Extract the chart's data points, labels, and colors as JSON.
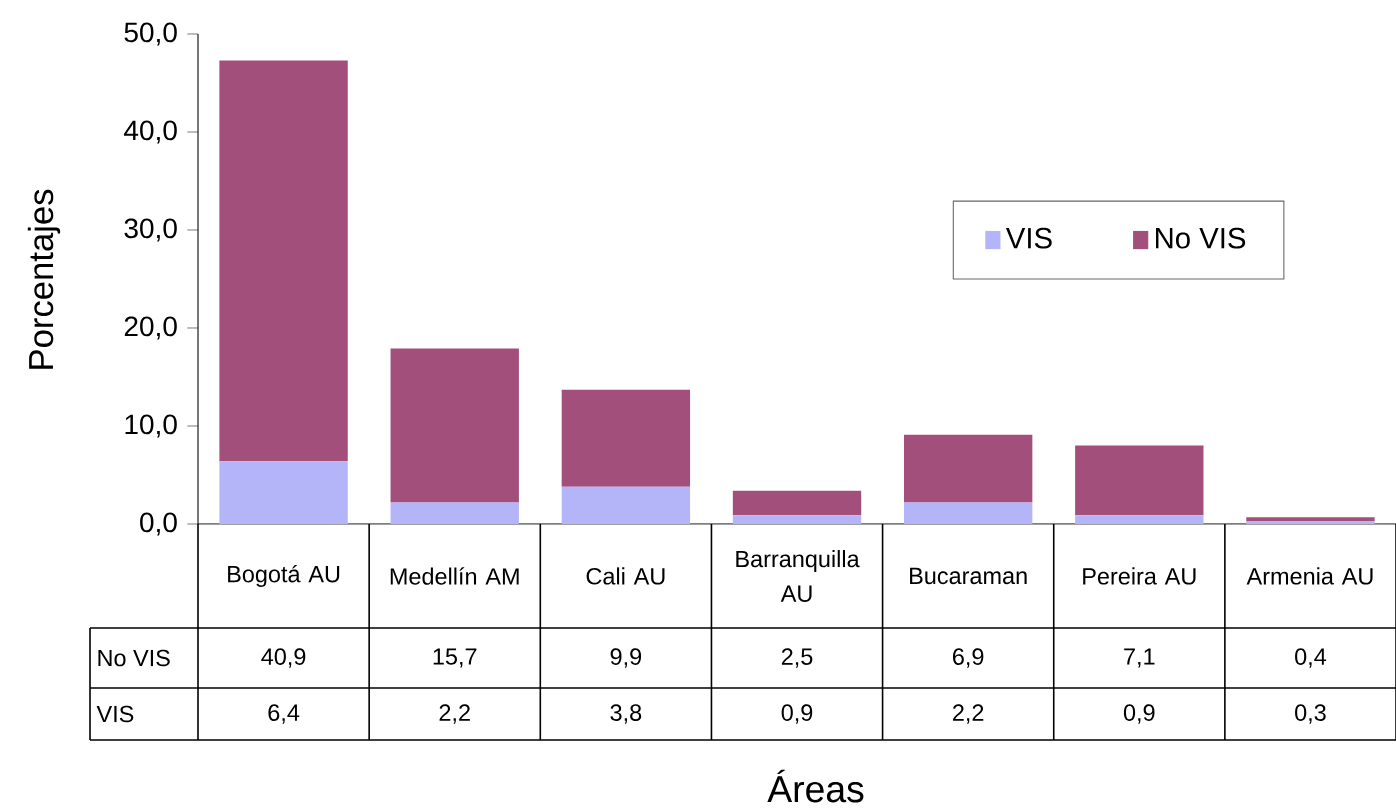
{
  "chart_data": {
    "type": "bar",
    "stacked": true,
    "ylabel": "Porcentajes",
    "xlabel": "Áreas",
    "categories": [
      "Bogotá AU",
      "Medellín AM",
      "Cali AU",
      "Barranquilla AU",
      "Bucaraman",
      "Pereira AU",
      "Armenia AU"
    ],
    "series": [
      {
        "name": "VIS",
        "color": "#b4b4f8",
        "values": [
          6.4,
          2.2,
          3.8,
          0.9,
          2.2,
          0.9,
          0.3
        ],
        "value_labels": [
          "6,4",
          "2,2",
          "3,8",
          "0,9",
          "2,2",
          "0,9",
          "0,3"
        ]
      },
      {
        "name": "No VIS",
        "color": "#a24f7c",
        "values": [
          40.9,
          15.7,
          9.9,
          2.5,
          6.9,
          7.1,
          0.4
        ],
        "value_labels": [
          "40,9",
          "15,7",
          "9,9",
          "2,5",
          "6,9",
          "7,1",
          "0,4"
        ]
      }
    ],
    "ylim": [
      0,
      50
    ],
    "yticks": [
      {
        "value": 0,
        "label": "0,0"
      },
      {
        "value": 10,
        "label": "10,0"
      },
      {
        "value": 20,
        "label": "20,0"
      },
      {
        "value": 30,
        "label": "30,0"
      },
      {
        "value": 40,
        "label": "40,0"
      },
      {
        "value": 50,
        "label": "50,0"
      }
    ],
    "legend": "right"
  }
}
